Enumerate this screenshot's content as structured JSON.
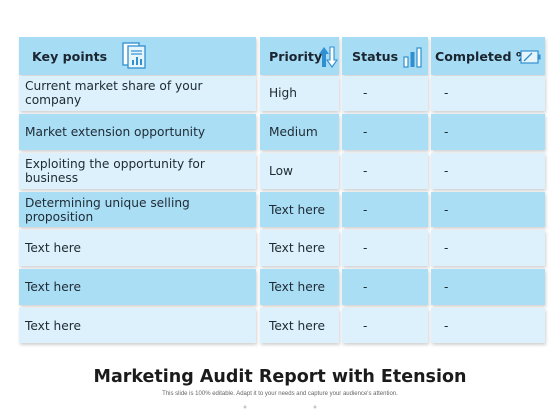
{
  "table": {
    "headers": [
      "Key points",
      "Priority",
      "Status",
      "Completed %"
    ],
    "rows": [
      [
        "Current market share of your company",
        "High",
        "-",
        "-"
      ],
      [
        "Market extension opportunity",
        "Medium",
        "-",
        "-"
      ],
      [
        "Exploiting the opportunity for business",
        "Low",
        "-",
        "-"
      ],
      [
        "Determining unique selling proposition",
        "Text here",
        "-",
        "-"
      ],
      [
        "Text here",
        "Text here",
        "-",
        "-"
      ],
      [
        "Text here",
        "Text here",
        "-",
        "-"
      ],
      [
        "Text here",
        "Text here",
        "-",
        "-"
      ]
    ]
  },
  "footer": {
    "title": "Marketing Audit Report with Etension",
    "subtitle": "This slide is 100% editable. Adapt it to your needs and capture your audience's attention."
  },
  "icons": {
    "key_points": "document-chart-icon",
    "priority": "up-down-arrows-icon",
    "status": "bar-chart-icon",
    "completed": "battery-icon"
  },
  "colors": {
    "header_bg": "#a6dcf4",
    "row_light": "#dcf1fb",
    "row_mid": "#a9def5",
    "icon_blue": "#2f8fd0"
  }
}
